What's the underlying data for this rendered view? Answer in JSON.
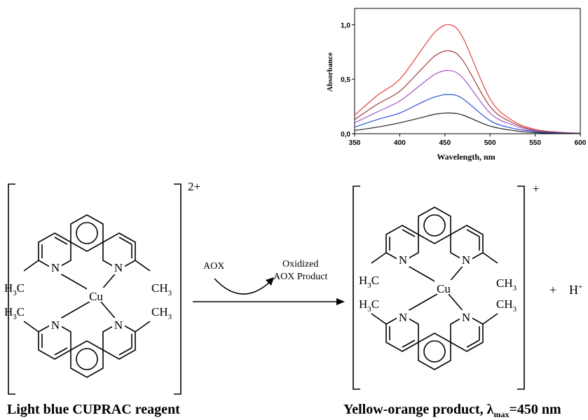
{
  "chart": {
    "ylabel": "Absorbance",
    "xlabel": "Wavelength, nm",
    "xticks": [
      "350",
      "400",
      "450",
      "500",
      "550",
      "600"
    ],
    "yticks": [
      "0,0",
      "0,5",
      "1,0"
    ]
  },
  "chart_data": {
    "type": "line",
    "xlabel": "Wavelength, nm",
    "ylabel": "Absorbance",
    "xlim": [
      350,
      600
    ],
    "ylim": [
      0,
      1.15
    ],
    "legend": "none",
    "x": [
      350,
      375,
      400,
      425,
      440,
      455,
      470,
      500,
      525,
      550,
      575,
      600
    ],
    "series": [
      {
        "color": "#e8413c",
        "values": [
          0.17,
          0.35,
          0.5,
          0.78,
          0.94,
          1.0,
          0.88,
          0.32,
          0.12,
          0.04,
          0.015,
          0.005
        ]
      },
      {
        "color": "#9b3a3a",
        "values": [
          0.13,
          0.27,
          0.39,
          0.6,
          0.72,
          0.76,
          0.67,
          0.25,
          0.1,
          0.03,
          0.012,
          0.004
        ]
      },
      {
        "color": "#a356c9",
        "values": [
          0.1,
          0.2,
          0.3,
          0.46,
          0.55,
          0.58,
          0.51,
          0.19,
          0.08,
          0.025,
          0.01,
          0.003
        ]
      },
      {
        "color": "#2e4fd6",
        "values": [
          0.06,
          0.13,
          0.19,
          0.29,
          0.34,
          0.36,
          0.32,
          0.12,
          0.05,
          0.02,
          0.008,
          0.003
        ]
      },
      {
        "color": "#222222",
        "values": [
          0.03,
          0.06,
          0.1,
          0.15,
          0.18,
          0.19,
          0.17,
          0.07,
          0.03,
          0.01,
          0.004,
          0.002
        ]
      }
    ]
  },
  "reaction": {
    "reactant_charge": "2+",
    "product_charge": "+",
    "reagent_label": "AOX",
    "product_label_line1": "Oxidized",
    "product_label_line2": "AOX Product",
    "side_product_plus": "+",
    "side_product": "H",
    "side_product_charge": "+"
  },
  "complex": {
    "N": "N",
    "Cu": "Cu",
    "H3C_H": "H",
    "H3C_sub": "3",
    "H3C_C": "C",
    "CH3_C": "CH",
    "CH3_sub": "3"
  },
  "captions": {
    "left": "Light blue CUPRAC reagent",
    "right_prefix": "Yellow-orange product, ",
    "right_lambda": "λ",
    "right_sub": "max",
    "right_suffix": "=450 nm"
  }
}
